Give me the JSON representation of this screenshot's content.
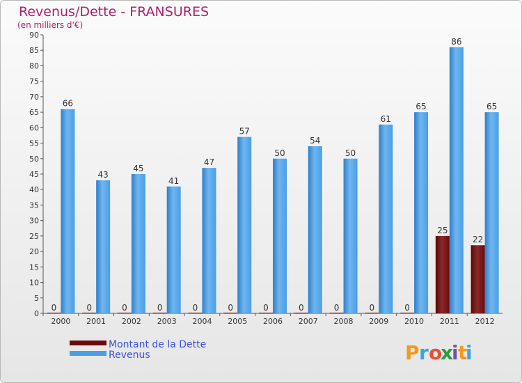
{
  "chart_data": {
    "type": "bar",
    "title": "Revenus/Dette - FRANSURES",
    "subtitle": "(en milliers d'€)",
    "categories": [
      "2000",
      "2001",
      "2002",
      "2003",
      "2004",
      "2005",
      "2006",
      "2007",
      "2008",
      "2009",
      "2010",
      "2011",
      "2012"
    ],
    "series": [
      {
        "name": "Montant de la Dette",
        "color": "#6b0a0a",
        "values": [
          0,
          0,
          0,
          0,
          0,
          0,
          0,
          0,
          0,
          0,
          0,
          25,
          22
        ]
      },
      {
        "name": "Revenus",
        "color": "#4a9ee6",
        "values": [
          66,
          43,
          45,
          41,
          47,
          57,
          50,
          54,
          50,
          61,
          65,
          86,
          65
        ]
      }
    ],
    "ylim": [
      0,
      90
    ],
    "ytick_step": 5,
    "xlabel": "",
    "ylabel": "",
    "grid": false,
    "legend": "bottom-left"
  },
  "logo": {
    "letters": [
      "P",
      "r",
      "o",
      "x",
      "i",
      "t",
      "i"
    ],
    "colors": [
      "#f29a1c",
      "#3aa5dd",
      "#e94f35",
      "#2d9c44",
      "#7c4ea0",
      "#f29a1c",
      "#3aa5dd"
    ]
  }
}
